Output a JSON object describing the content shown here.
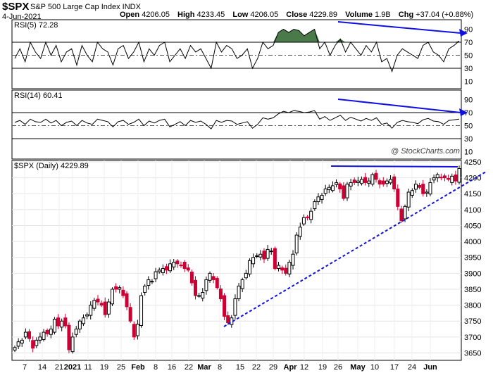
{
  "header": {
    "symbol": "$SPX",
    "description": "S&P 500 Large Cap Index INDX",
    "date": "4-Jun-2021",
    "open_label": "Open",
    "open": "4206.05",
    "high_label": "High",
    "high": "4233.45",
    "low_label": "Low",
    "low": "4206.05",
    "close_label": "Close",
    "close": "4229.89",
    "volume_label": "Volume",
    "volume": "1.9B",
    "chg_label": "Chg",
    "chg": "+37.04 (+0.88%)"
  },
  "watermark": "@ StockCharts.com",
  "colors": {
    "up": "#ffffff",
    "down": "#cc0033",
    "rsi_fill": "#4a7a4a",
    "trendline": "#1010e0"
  },
  "chart_data": [
    {
      "type": "line",
      "title": "RSI(5) 72.28",
      "ylim": [
        0,
        100
      ],
      "yticks": [
        10,
        30,
        50,
        70,
        90
      ],
      "reference_lines": [
        30,
        50,
        70
      ],
      "fill_above": 70,
      "values": [
        45,
        60,
        40,
        70,
        55,
        45,
        70,
        50,
        65,
        40,
        55,
        60,
        35,
        65,
        50,
        40,
        70,
        60,
        55,
        35,
        60,
        65,
        45,
        55,
        70,
        40,
        60,
        50,
        65,
        70,
        40,
        50,
        60,
        45,
        65,
        55,
        60,
        45,
        30,
        70,
        55,
        65,
        60,
        45,
        50,
        60,
        30,
        45,
        70,
        60,
        65,
        85,
        90,
        85,
        90,
        88,
        80,
        85,
        90,
        60,
        70,
        50,
        65,
        75,
        55,
        70,
        60,
        50,
        65,
        55,
        70,
        40,
        45,
        25,
        50,
        60,
        55,
        50,
        45,
        65,
        70,
        55,
        50,
        40,
        60,
        65,
        72
      ]
    },
    {
      "type": "line",
      "title": "RSI(14) 60.41",
      "ylim": [
        0,
        100
      ],
      "yticks": [
        10,
        30,
        50,
        70,
        90
      ],
      "reference_lines": [
        30,
        50,
        70
      ],
      "values": [
        55,
        58,
        52,
        60,
        56,
        55,
        60,
        54,
        58,
        50,
        55,
        57,
        50,
        58,
        54,
        52,
        60,
        58,
        56,
        48,
        56,
        58,
        52,
        55,
        60,
        50,
        57,
        54,
        58,
        60,
        48,
        52,
        56,
        50,
        58,
        55,
        57,
        52,
        45,
        58,
        55,
        58,
        57,
        52,
        54,
        56,
        46,
        52,
        62,
        60,
        62,
        68,
        72,
        70,
        73,
        72,
        70,
        71,
        73,
        60,
        64,
        58,
        62,
        66,
        58,
        63,
        60,
        57,
        61,
        58,
        62,
        52,
        54,
        46,
        55,
        58,
        56,
        55,
        53,
        59,
        61,
        57,
        56,
        52,
        58,
        59,
        60
      ]
    },
    {
      "type": "candlestick",
      "title": "$SPX (Daily) 4229.89",
      "ylim": [
        3635,
        4255
      ],
      "yticks": [
        3650,
        3700,
        3750,
        3800,
        3850,
        3900,
        3950,
        4000,
        4050,
        4100,
        4150,
        4200,
        4250
      ],
      "x_tick_labels": [
        "7",
        "14",
        "21",
        "2021",
        "11",
        "19",
        "25",
        "Feb",
        "8",
        "16",
        "22",
        "Mar",
        "8",
        "15",
        "22",
        "29",
        "Apr",
        "12",
        "19",
        "26",
        "May",
        "10",
        "17",
        "24",
        "Jun"
      ],
      "close": [
        3667,
        3685,
        3690,
        3715,
        3695,
        3665,
        3690,
        3700,
        3715,
        3710,
        3725,
        3756,
        3735,
        3750,
        3735,
        3660,
        3700,
        3725,
        3750,
        3760,
        3770,
        3800,
        3815,
        3810,
        3800,
        3770,
        3810,
        3850,
        3850,
        3855,
        3830,
        3795,
        3750,
        3700,
        3740,
        3830,
        3860,
        3880,
        3875,
        3905,
        3910,
        3915,
        3910,
        3930,
        3935,
        3930,
        3925,
        3915,
        3910,
        3870,
        3830,
        3830,
        3840,
        3880,
        3900,
        3880,
        3855,
        3820,
        3765,
        3745,
        3760,
        3820,
        3860,
        3880,
        3900,
        3940,
        3950,
        3955,
        3960,
        3945,
        3975,
        3970,
        3915,
        3925,
        3910,
        3900,
        3935,
        3960,
        4020,
        4045,
        4075,
        4075,
        4095,
        4125,
        4140,
        4145,
        4165,
        4170,
        4175,
        4185,
        4165,
        4135,
        4180,
        4185,
        4185,
        4190,
        4195,
        4185,
        4190,
        4210,
        4195,
        4180,
        4180,
        4190,
        4195,
        4165,
        4110,
        4065,
        4110,
        4155,
        4160,
        4180,
        4170,
        4150,
        4155,
        4185,
        4200,
        4210,
        4200,
        4200,
        4195,
        4205,
        4190,
        4229
      ]
    }
  ]
}
